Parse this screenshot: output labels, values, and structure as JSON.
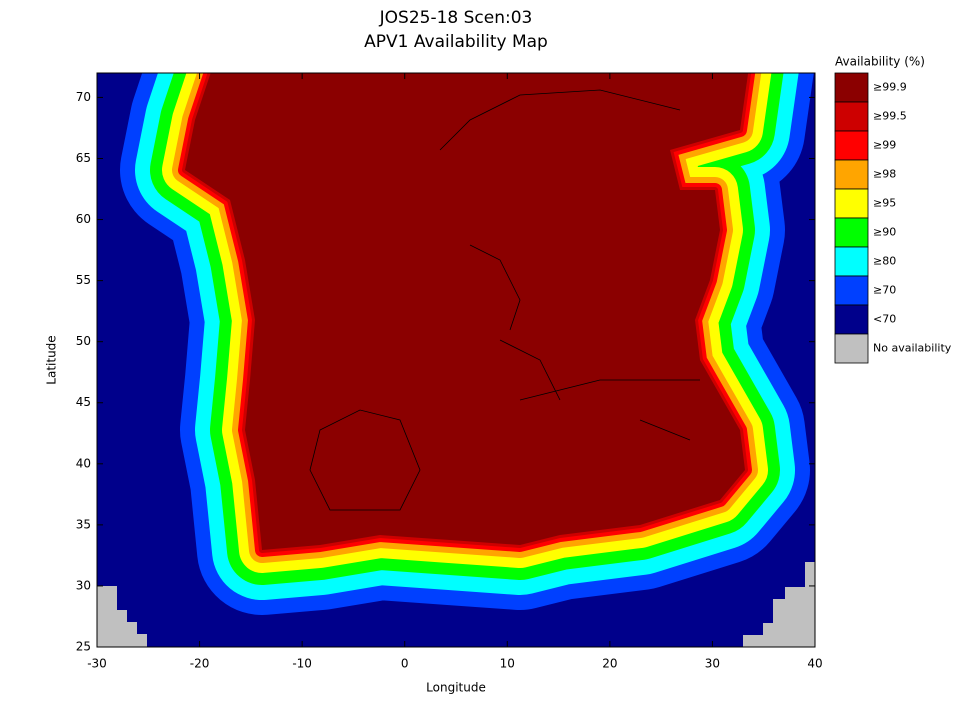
{
  "chart_data": {
    "type": "map",
    "title": "JOS25-18 Scen:03",
    "subtitle": "APV1 Availability Map",
    "xlabel": "Longitude",
    "ylabel": "Latitude",
    "xlim": [
      -30,
      40
    ],
    "ylim": [
      25,
      72
    ],
    "xticks": [
      -30,
      -20,
      -10,
      0,
      10,
      20,
      30,
      40
    ],
    "yticks": [
      25,
      30,
      35,
      40,
      45,
      50,
      55,
      60,
      65,
      70
    ],
    "legend": {
      "title": "Availability (%)",
      "items": [
        {
          "label": "≥99.9",
          "color": "#8b0000"
        },
        {
          "label": "≥99.5",
          "color": "#cd0000"
        },
        {
          "label": "≥99",
          "color": "#ff0000"
        },
        {
          "label": "≥98",
          "color": "#ffa500"
        },
        {
          "label": "≥95",
          "color": "#ffff00"
        },
        {
          "label": "≥90",
          "color": "#00ff00"
        },
        {
          "label": "≥80",
          "color": "#00ffff"
        },
        {
          "label": "≥70",
          "color": "#0040ff"
        },
        {
          "label": "<70",
          "color": "#00008b"
        },
        {
          "label": "No availability",
          "color": "#c0c0c0"
        }
      ]
    }
  }
}
